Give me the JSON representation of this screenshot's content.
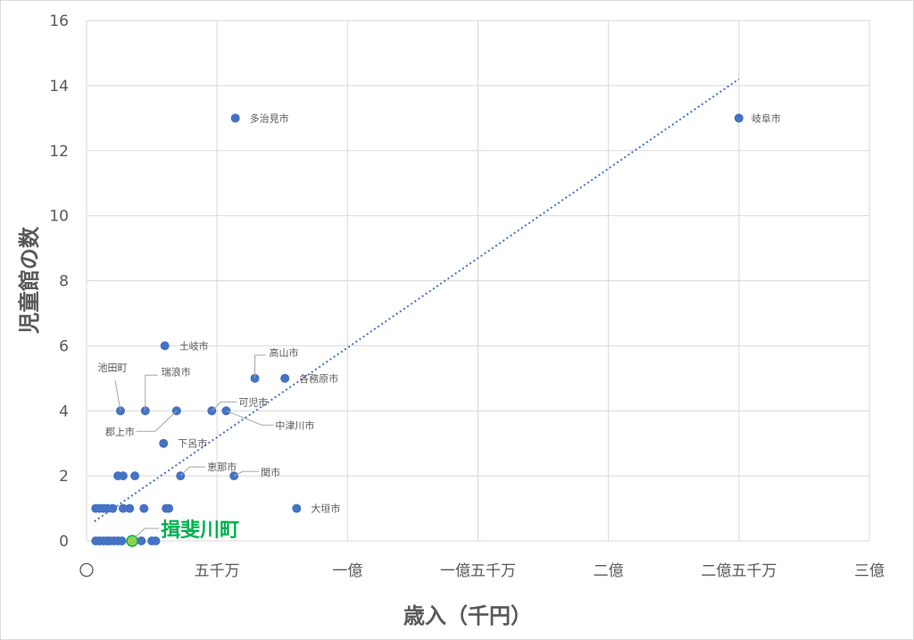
{
  "chart_data": {
    "type": "scatter",
    "xlabel": "歳入（千円）",
    "ylabel": "児童館の数",
    "xlim": [
      0,
      300000000
    ],
    "ylim": [
      0,
      16
    ],
    "x_ticks": [
      {
        "value": 0,
        "label": "〇"
      },
      {
        "value": 50000000,
        "label": "五千万"
      },
      {
        "value": 100000000,
        "label": "一億"
      },
      {
        "value": 150000000,
        "label": "一億五千万"
      },
      {
        "value": 200000000,
        "label": "二億"
      },
      {
        "value": 250000000,
        "label": "二億五千万"
      },
      {
        "value": 300000000,
        "label": "三億"
      }
    ],
    "y_ticks": [
      0,
      2,
      4,
      6,
      8,
      10,
      12,
      14,
      16
    ],
    "grid": true,
    "colors": {
      "marker": "#4472c4",
      "highlight": "#00b050",
      "highlight_fill": "#92d050"
    },
    "trendline": {
      "type": "linear",
      "style": "dotted",
      "x": [
        3000000,
        250000000
      ],
      "y": [
        0.6,
        14.2
      ]
    },
    "labeled_points": [
      {
        "label": "岐阜市",
        "x": 250000000,
        "y": 13
      },
      {
        "label": "多治見市",
        "x": 57000000,
        "y": 13
      },
      {
        "label": "土岐市",
        "x": 30000000,
        "y": 6
      },
      {
        "label": "高山市",
        "x": 64500000,
        "y": 5
      },
      {
        "label": "各務原市",
        "x": 76000000,
        "y": 5
      },
      {
        "label": "池田町",
        "x": 13000000,
        "y": 4
      },
      {
        "label": "瑞浪市",
        "x": 22500000,
        "y": 4
      },
      {
        "label": "郡上市",
        "x": 34500000,
        "y": 4
      },
      {
        "label": "可児市",
        "x": 48000000,
        "y": 4
      },
      {
        "label": "中津川市",
        "x": 53500000,
        "y": 4
      },
      {
        "label": "下呂市",
        "x": 29500000,
        "y": 3
      },
      {
        "label": "恵那市",
        "x": 36000000,
        "y": 2
      },
      {
        "label": "関市",
        "x": 56500000,
        "y": 2
      },
      {
        "label": "大垣市",
        "x": 80500000,
        "y": 1
      }
    ],
    "unlabeled_points": [
      {
        "x": 12000000,
        "y": 2
      },
      {
        "x": 14000000,
        "y": 2
      },
      {
        "x": 18500000,
        "y": 2
      },
      {
        "x": 3500000,
        "y": 1
      },
      {
        "x": 5000000,
        "y": 1
      },
      {
        "x": 6500000,
        "y": 1
      },
      {
        "x": 8000000,
        "y": 1
      },
      {
        "x": 10000000,
        "y": 1
      },
      {
        "x": 14000000,
        "y": 1
      },
      {
        "x": 16500000,
        "y": 1
      },
      {
        "x": 22000000,
        "y": 1
      },
      {
        "x": 30500000,
        "y": 1
      },
      {
        "x": 31500000,
        "y": 1
      },
      {
        "x": 3500000,
        "y": 0
      },
      {
        "x": 5000000,
        "y": 0
      },
      {
        "x": 6500000,
        "y": 0
      },
      {
        "x": 8000000,
        "y": 0
      },
      {
        "x": 9000000,
        "y": 0
      },
      {
        "x": 10500000,
        "y": 0
      },
      {
        "x": 12000000,
        "y": 0
      },
      {
        "x": 13500000,
        "y": 0
      },
      {
        "x": 21000000,
        "y": 0
      },
      {
        "x": 25000000,
        "y": 0
      },
      {
        "x": 26500000,
        "y": 0
      }
    ],
    "highlight_point": {
      "label": "揖斐川町",
      "x": 17500000,
      "y": 0
    }
  }
}
